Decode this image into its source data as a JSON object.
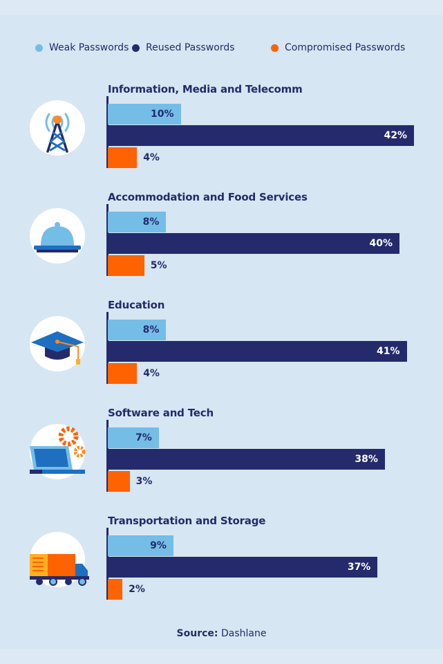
{
  "colors": {
    "weak": "#74bde7",
    "reused": "#242a6b",
    "compromised": "#ff6200",
    "background": "#d7e6f3"
  },
  "chart_data": {
    "type": "bar",
    "orientation": "horizontal",
    "legend_position": "top",
    "series": [
      {
        "name": "Weak Passwords",
        "values": [
          10,
          8,
          8,
          7,
          9
        ]
      },
      {
        "name": "Reused Passwords",
        "values": [
          42,
          40,
          41,
          38,
          37
        ]
      },
      {
        "name": "Compromised Passwords",
        "values": [
          4,
          5,
          4,
          3,
          2
        ]
      }
    ],
    "categories": [
      "Information, Media and Telecomm",
      "Accommodation and Food Services",
      "Education",
      "Software and Tech",
      "Transportation and Storage"
    ],
    "value_labels": [
      [
        "10%",
        "42%",
        "4%"
      ],
      [
        "8%",
        "40%",
        "5%"
      ],
      [
        "8%",
        "41%",
        "4%"
      ],
      [
        "7%",
        "38%",
        "3%"
      ],
      [
        "9%",
        "37%",
        "2%"
      ]
    ],
    "icons": [
      "cell-tower-icon",
      "food-cloche-icon",
      "graduation-cap-icon",
      "laptop-gears-icon",
      "delivery-truck-icon"
    ]
  },
  "source": {
    "label": "Source:",
    "value": "Dashlane"
  }
}
